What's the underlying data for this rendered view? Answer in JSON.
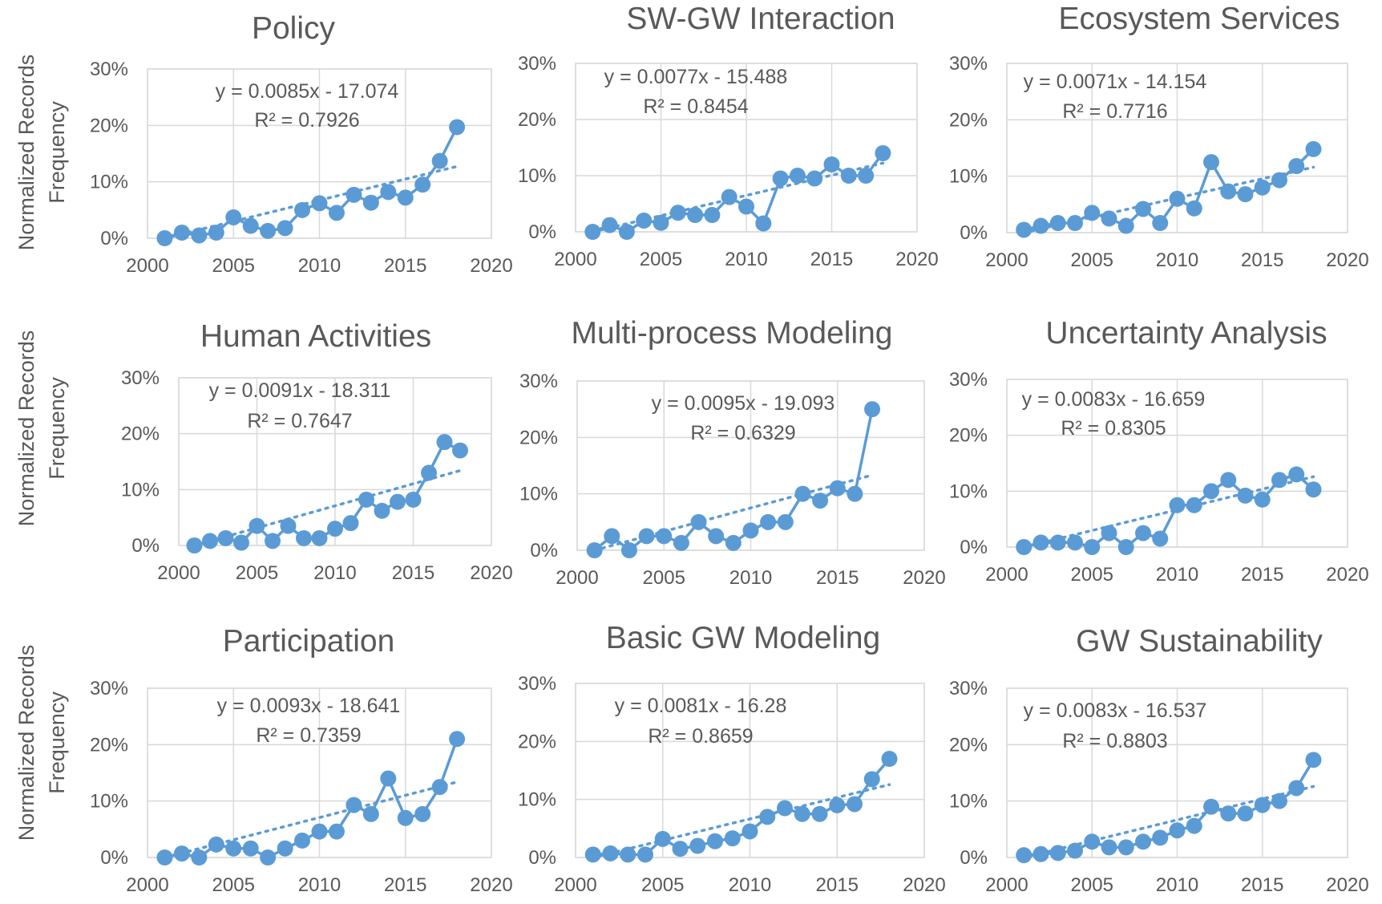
{
  "colors": {
    "series": "#5B9BD5",
    "text": "#595959",
    "grid": "#D9D9D9"
  },
  "y_axis_label_lines": [
    "Normalized Records",
    "Frequency"
  ],
  "chart_data": [
    {
      "type": "line",
      "title": "Policy",
      "xlim": [
        2000,
        2020
      ],
      "ylim": [
        0,
        30
      ],
      "x_ticks": [
        "2000",
        "2005",
        "2010",
        "2015",
        "2020"
      ],
      "y_ticks": [
        "0%",
        "10%",
        "20%",
        "30%"
      ],
      "grid": true,
      "trendline": "linear-dotted",
      "x": [
        2001,
        2002,
        2003,
        2004,
        2005,
        2006,
        2007,
        2008,
        2009,
        2010,
        2011,
        2012,
        2013,
        2014,
        2015,
        2016,
        2017,
        2018
      ],
      "y": [
        0,
        1,
        0.5,
        1,
        3.7,
        2.2,
        1.3,
        1.8,
        5,
        6.2,
        4.5,
        7.7,
        6.3,
        8.2,
        7.2,
        9.5,
        13.7,
        19.7
      ],
      "equation": "y = 0.0085x - 17.074",
      "r2": "R² = 0.7926"
    },
    {
      "type": "line",
      "title": "SW-GW Interaction",
      "xlim": [
        2000,
        2020
      ],
      "ylim": [
        0,
        30
      ],
      "x_ticks": [
        "2000",
        "2005",
        "2010",
        "2015",
        "2020"
      ],
      "y_ticks": [
        "0%",
        "10%",
        "20%",
        "30%"
      ],
      "grid": true,
      "trendline": "linear-dotted",
      "x": [
        2001,
        2002,
        2003,
        2004,
        2005,
        2006,
        2007,
        2008,
        2009,
        2010,
        2011,
        2012,
        2013,
        2014,
        2015,
        2016,
        2017,
        2018
      ],
      "y": [
        0,
        1.2,
        0,
        2,
        1.6,
        3.4,
        3,
        3,
        6.2,
        4.5,
        1.5,
        9.5,
        10,
        9.5,
        12,
        10,
        10,
        14
      ],
      "equation": "y = 0.0077x - 15.488",
      "r2": "R² = 0.8454"
    },
    {
      "type": "line",
      "title": "Ecosystem Services",
      "xlim": [
        2000,
        2020
      ],
      "ylim": [
        0,
        30
      ],
      "x_ticks": [
        "2000",
        "2005",
        "2010",
        "2015",
        "2020"
      ],
      "y_ticks": [
        "0%",
        "10%",
        "20%",
        "30%"
      ],
      "grid": true,
      "trendline": "linear-dotted",
      "x": [
        2001,
        2002,
        2003,
        2004,
        2005,
        2006,
        2007,
        2008,
        2009,
        2010,
        2011,
        2012,
        2013,
        2014,
        2015,
        2016,
        2017,
        2018
      ],
      "y": [
        0.5,
        1.2,
        1.7,
        1.7,
        3.5,
        2.5,
        1.2,
        4.2,
        1.7,
        6,
        4.3,
        12.5,
        7.3,
        6.8,
        8,
        9.3,
        11.8,
        14.8
      ],
      "equation": "y = 0.0071x - 14.154",
      "r2": "R² = 0.7716"
    },
    {
      "type": "line",
      "title": "Human Activities",
      "xlim": [
        2000,
        2020
      ],
      "ylim": [
        0,
        30
      ],
      "x_ticks": [
        "2000",
        "2005",
        "2010",
        "2015",
        "2020"
      ],
      "y_ticks": [
        "0%",
        "10%",
        "20%",
        "30%"
      ],
      "grid": true,
      "trendline": "linear-dotted",
      "x": [
        2001,
        2002,
        2003,
        2004,
        2005,
        2006,
        2007,
        2008,
        2009,
        2010,
        2011,
        2012,
        2013,
        2014,
        2015,
        2016,
        2017,
        2018
      ],
      "y": [
        0,
        0.8,
        1.3,
        0.5,
        3.5,
        0.8,
        3.5,
        1.3,
        1.3,
        3,
        4,
        8.2,
        6.2,
        7.8,
        8.2,
        13,
        18.5,
        17
      ],
      "equation": "y = 0.0091x - 18.311",
      "r2": "R² = 0.7647"
    },
    {
      "type": "line",
      "title": "Multi-process Modeling",
      "xlim": [
        2000,
        2020
      ],
      "ylim": [
        0,
        30
      ],
      "x_ticks": [
        "2000",
        "2005",
        "2010",
        "2015",
        "2020"
      ],
      "y_ticks": [
        "0%",
        "10%",
        "20%",
        "30%"
      ],
      "grid": true,
      "trendline": "linear-dotted",
      "x": [
        2001,
        2002,
        2003,
        2004,
        2005,
        2006,
        2007,
        2008,
        2009,
        2010,
        2011,
        2012,
        2013,
        2014,
        2015,
        2016,
        2017
      ],
      "y": [
        0,
        2.5,
        0,
        2.5,
        2.5,
        1.3,
        5,
        2.5,
        1.3,
        3.5,
        5,
        5,
        10,
        8.8,
        11,
        10,
        25
      ],
      "equation": "y = 0.0095x - 19.093",
      "r2": "R² = 0.6329"
    },
    {
      "type": "line",
      "title": "Uncertainty Analysis",
      "xlim": [
        2000,
        2020
      ],
      "ylim": [
        0,
        30
      ],
      "x_ticks": [
        "2000",
        "2005",
        "2010",
        "2015",
        "2020"
      ],
      "y_ticks": [
        "0%",
        "10%",
        "20%",
        "30%"
      ],
      "grid": true,
      "trendline": "linear-dotted",
      "x": [
        2001,
        2002,
        2003,
        2004,
        2005,
        2006,
        2007,
        2008,
        2009,
        2010,
        2011,
        2012,
        2013,
        2014,
        2015,
        2016,
        2017,
        2018
      ],
      "y": [
        0,
        0.8,
        0.8,
        0.8,
        0,
        2.5,
        0,
        2.5,
        1.5,
        7.5,
        7.5,
        10,
        12,
        9.2,
        8.5,
        12,
        13,
        10.3
      ],
      "equation": "y = 0.0083x - 16.659",
      "r2": "R² = 0.8305"
    },
    {
      "type": "line",
      "title": "Participation",
      "xlim": [
        2000,
        2020
      ],
      "ylim": [
        0,
        30
      ],
      "x_ticks": [
        "2000",
        "2005",
        "2010",
        "2015",
        "2020"
      ],
      "y_ticks": [
        "0%",
        "10%",
        "20%",
        "30%"
      ],
      "grid": true,
      "trendline": "linear-dotted",
      "x": [
        2001,
        2002,
        2003,
        2004,
        2005,
        2006,
        2007,
        2008,
        2009,
        2010,
        2011,
        2012,
        2013,
        2014,
        2015,
        2016,
        2017,
        2018
      ],
      "y": [
        0,
        0.7,
        0,
        2.3,
        1.6,
        1.6,
        0,
        1.6,
        3,
        4.6,
        4.6,
        9.3,
        7.7,
        14,
        7,
        7.7,
        12.5,
        21
      ],
      "equation": "y = 0.0093x - 18.641",
      "r2": "R² = 0.7359"
    },
    {
      "type": "line",
      "title": "Basic GW Modeling",
      "xlim": [
        2000,
        2020
      ],
      "ylim": [
        0,
        30
      ],
      "x_ticks": [
        "2000",
        "2005",
        "2010",
        "2015",
        "2020"
      ],
      "y_ticks": [
        "0%",
        "10%",
        "20%",
        "30%"
      ],
      "grid": true,
      "trendline": "linear-dotted",
      "x": [
        2001,
        2002,
        2003,
        2004,
        2005,
        2006,
        2007,
        2008,
        2009,
        2010,
        2011,
        2012,
        2013,
        2014,
        2015,
        2016,
        2017,
        2018
      ],
      "y": [
        0.5,
        0.7,
        0.5,
        0.5,
        3.2,
        1.5,
        2,
        2.8,
        3.3,
        4.5,
        7,
        8.5,
        7.5,
        7.5,
        9,
        9.2,
        13.5,
        17
      ],
      "equation": "y = 0.0081x - 16.28",
      "r2": "R² = 0.8659"
    },
    {
      "type": "line",
      "title": "GW Sustainability",
      "xlim": [
        2000,
        2020
      ],
      "ylim": [
        0,
        30
      ],
      "x_ticks": [
        "2000",
        "2005",
        "2010",
        "2015",
        "2020"
      ],
      "y_ticks": [
        "0%",
        "10%",
        "20%",
        "30%"
      ],
      "grid": true,
      "trendline": "linear-dotted",
      "x": [
        2001,
        2002,
        2003,
        2004,
        2005,
        2006,
        2007,
        2008,
        2009,
        2010,
        2011,
        2012,
        2013,
        2014,
        2015,
        2016,
        2017,
        2018
      ],
      "y": [
        0.4,
        0.6,
        0.8,
        1.2,
        2.8,
        1.8,
        1.8,
        2.8,
        3.5,
        4.8,
        5.6,
        9,
        7.8,
        7.8,
        9.3,
        10,
        12.3,
        17.3
      ],
      "equation": "y = 0.0083x - 16.537",
      "r2": "R² = 0.8803"
    }
  ]
}
